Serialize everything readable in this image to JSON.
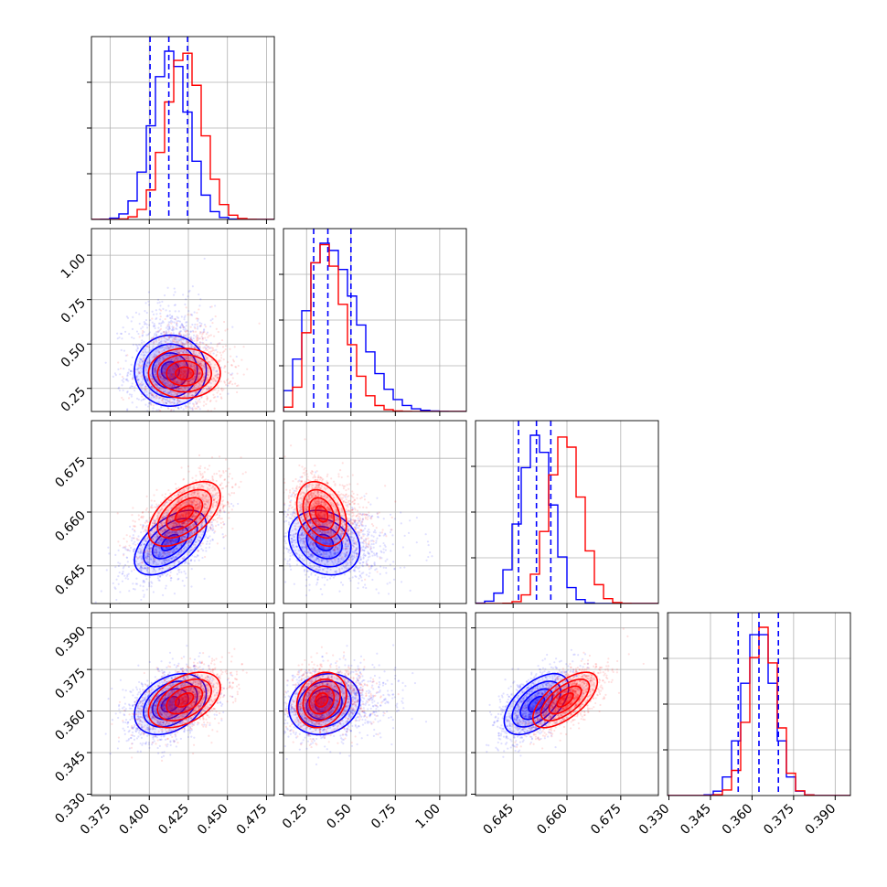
{
  "chart_data": {
    "type": "corner",
    "title": "",
    "grid": true,
    "colors": {
      "blue": "#0000ff",
      "red": "#ff0000"
    },
    "params": [
      {
        "range": [
          0.363,
          0.48
        ],
        "ticks": [
          0.375,
          0.4,
          0.425,
          0.45,
          0.475
        ],
        "tick_labels": [
          "0.375",
          "0.400",
          "0.425",
          "0.450",
          "0.475"
        ]
      },
      {
        "range": [
          0.12,
          1.15
        ],
        "ticks": [
          0.25,
          0.5,
          0.75,
          1.0
        ],
        "tick_labels": [
          "0.25",
          "0.50",
          "0.75",
          "1.00"
        ]
      },
      {
        "range": [
          0.6345,
          0.6855
        ],
        "ticks": [
          0.645,
          0.66,
          0.675
        ],
        "tick_labels": [
          "0.645",
          "0.660",
          "0.675"
        ]
      },
      {
        "range": [
          0.3295,
          0.3955
        ],
        "ticks": [
          0.33,
          0.345,
          0.36,
          0.375,
          0.39
        ],
        "tick_labels": [
          "0.330",
          "0.345",
          "0.360",
          "0.375",
          "0.390"
        ]
      }
    ],
    "series": [
      {
        "color": "#0000ff",
        "mean": [
          0.4135,
          0.35,
          0.6515,
          0.3625
        ],
        "sigma": [
          0.0115,
          0.1,
          0.0045,
          0.0055
        ],
        "quantiles": [
          [
            0.4005,
            0.4125,
            0.4245
          ],
          [
            0.29,
            0.37,
            0.5
          ],
          [
            0.6465,
            0.6515,
            0.6555
          ],
          [
            0.355,
            0.3625,
            0.3695
          ]
        ]
      },
      {
        "color": "#ff0000",
        "mean": [
          0.4225,
          0.335,
          0.6595,
          0.364
        ],
        "sigma": [
          0.0115,
          0.07,
          0.0045,
          0.005
        ]
      }
    ],
    "correlations": {
      "blue": {
        "0-1": 0.0,
        "0-2": 0.55,
        "0-3": 0.35,
        "1-2": -0.2,
        "1-3": 0.15,
        "2-3": 0.55
      },
      "red": {
        "0-1": 0.0,
        "0-2": 0.55,
        "0-3": 0.45,
        "1-2": -0.3,
        "1-3": 0.2,
        "2-3": 0.65
      }
    }
  }
}
